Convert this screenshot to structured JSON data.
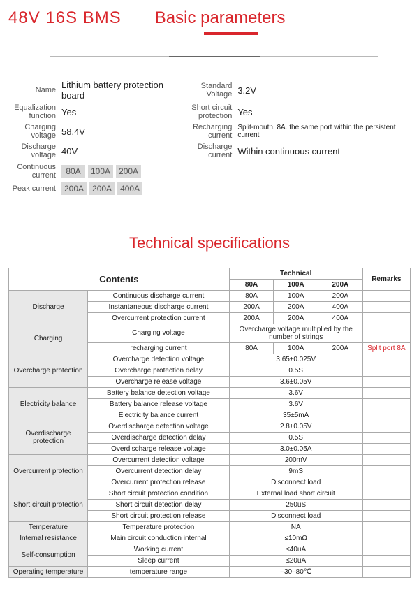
{
  "header": {
    "product_title": "48V  16S BMS",
    "basic_parameters_label": "Basic parameters",
    "accent_color": "#d9262c"
  },
  "basic": {
    "rows_left": [
      {
        "label": "Name",
        "value": "Lithium battery protection board"
      },
      {
        "label": "Equalization function",
        "value": "Yes"
      },
      {
        "label": "Charging voltage",
        "value": "58.4V"
      },
      {
        "label": "Discharge voltage",
        "value": "40V"
      }
    ],
    "rows_right": [
      {
        "label": "Standard Voltage",
        "value": "3.2V"
      },
      {
        "label": "Short circuit protection",
        "value": "Yes"
      },
      {
        "label": "Recharging current",
        "value": "Split-mouth. 8A. the same port within the persistent current"
      },
      {
        "label": "Discharge current",
        "value": "Within continuous current"
      }
    ],
    "continuous_current_label": "Continuous current",
    "continuous_current": [
      "80A",
      "100A",
      "200A"
    ],
    "peak_current_label": "Peak current",
    "peak_current": [
      "200A",
      "200A",
      "400A"
    ]
  },
  "tech_title": "Technical specifications",
  "tech_headers": {
    "contents": "Contents",
    "technical": "Technical",
    "cols": [
      "80A",
      "100A",
      "200A"
    ],
    "remarks": "Remarks"
  },
  "tech_rows": [
    {
      "cat": "Discharge",
      "rowspan": 3,
      "name": "Continuous discharge current",
      "vals": [
        "80A",
        "100A",
        "200A"
      ],
      "rem": ""
    },
    {
      "name": "Instantaneous discharge current",
      "vals": [
        "200A",
        "200A",
        "400A"
      ],
      "rem": ""
    },
    {
      "name": "Overcurrent protection current",
      "vals": [
        "200A",
        "200A",
        "400A"
      ],
      "rem": ""
    },
    {
      "cat": "Charging",
      "rowspan": 2,
      "name": "Charging voltage",
      "merged": "Overcharge voltage multiplied by the number of strings",
      "rem": ""
    },
    {
      "name": "recharging current",
      "vals": [
        "80A",
        "100A",
        "200A"
      ],
      "rem": "Split port 8A",
      "rem_red": true
    },
    {
      "cat": "Overcharge protection",
      "rowspan": 3,
      "name": "Overcharge detection voltage",
      "merged": "3.65±0.025V",
      "rem": ""
    },
    {
      "name": "Overcharge protection delay",
      "merged": "0.5S",
      "rem": ""
    },
    {
      "name": "Overcharge release voltage",
      "merged": "3.6±0.05V",
      "rem": ""
    },
    {
      "cat": "Electricity balance",
      "rowspan": 3,
      "name": "Battery balance detection voltage",
      "merged": "3.6V",
      "rem": ""
    },
    {
      "name": "Battery balance release voltage",
      "merged": "3.6V",
      "rem": ""
    },
    {
      "name": "Electricity balance current",
      "merged": "35±5mA",
      "rem": ""
    },
    {
      "cat": "Overdischarge protection",
      "rowspan": 3,
      "name": "Overdischarge detection voltage",
      "merged": "2.8±0.05V",
      "rem": ""
    },
    {
      "name": "Overdischarge detection delay",
      "merged": "0.5S",
      "rem": ""
    },
    {
      "name": "Overdischarge release voltage",
      "merged": "3.0±0.05A",
      "rem": ""
    },
    {
      "cat": "Overcurrent protection",
      "rowspan": 3,
      "name": "Overcurrent detection voltage",
      "merged": "200mV",
      "rem": ""
    },
    {
      "name": "Overcurrent detection delay",
      "merged": "9mS",
      "rem": ""
    },
    {
      "name": "Overcurrent protection release",
      "merged": "Disconnect load",
      "rem": ""
    },
    {
      "cat": "Short circuit protection",
      "rowspan": 3,
      "name": "Short circuit protection condition",
      "merged": "External load short circuit",
      "rem": ""
    },
    {
      "name": "Short circuit detection delay",
      "merged": "250uS",
      "rem": ""
    },
    {
      "name": "Short circuit protection release",
      "merged": "Disconnect load",
      "rem": ""
    },
    {
      "cat": "Temperature",
      "rowspan": 1,
      "name": "Temperature protection",
      "merged": "NA",
      "rem": ""
    },
    {
      "cat": "Internal resistance",
      "rowspan": 1,
      "name": "Main circuit conduction internal",
      "merged": "≤10mΩ",
      "rem": ""
    },
    {
      "cat": "Self-consumption",
      "rowspan": 2,
      "name": "Working current",
      "merged": "≤40uA",
      "rem": ""
    },
    {
      "name": "Sleep current",
      "merged": "≤20uA",
      "rem": ""
    },
    {
      "cat": "Operating temperature",
      "rowspan": 1,
      "name": "temperature range",
      "merged": "–30–80℃",
      "rem": ""
    }
  ]
}
